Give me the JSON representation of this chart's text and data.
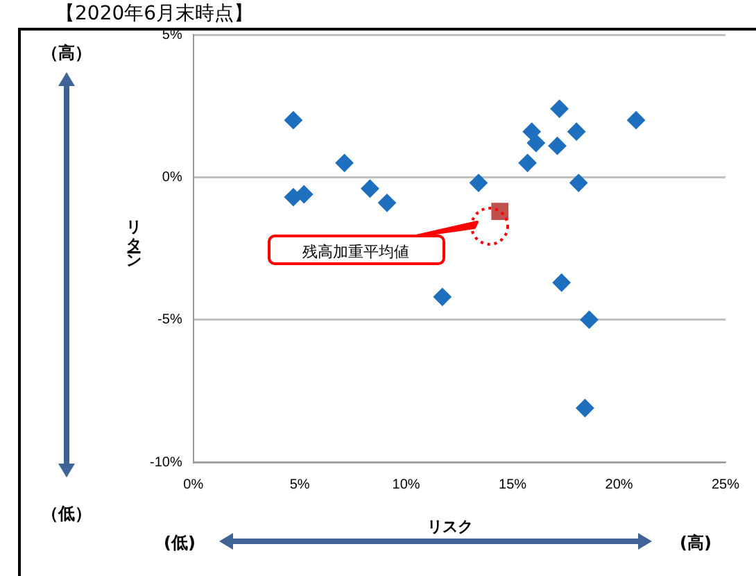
{
  "chart_data": {
    "type": "scatter",
    "title": "【2020年6月末時点】",
    "xlabel": "リスク",
    "ylabel": "リターン",
    "xlim": [
      0,
      25
    ],
    "xticks": [
      {
        "value": 0,
        "label": "0%"
      },
      {
        "value": 5,
        "label": "5%"
      },
      {
        "value": 10,
        "label": "10%"
      },
      {
        "value": 15,
        "label": "15%"
      },
      {
        "value": 20,
        "label": "20%"
      },
      {
        "value": 25,
        "label": "25%"
      }
    ],
    "ylim": [
      -10,
      5
    ],
    "yticks": [
      {
        "value": -10,
        "label": "-10%"
      },
      {
        "value": -5,
        "label": "-5%"
      },
      {
        "value": 0,
        "label": "0%"
      },
      {
        "value": 5,
        "label": "5%"
      }
    ],
    "grid": "y",
    "legend": false,
    "marker": "diamond",
    "series": [
      {
        "color": "#1f6fbf",
        "x": [
          4.7,
          4.7,
          5.2,
          7.1,
          8.3,
          9.1,
          11.7,
          13.4,
          17.2,
          15.9,
          16.1,
          17.1,
          18.0,
          20.8,
          15.7,
          18.1,
          17.3,
          18.6,
          18.4
        ],
        "values": [
          2.0,
          -0.7,
          -0.6,
          0.5,
          -0.4,
          -0.9,
          -4.2,
          -0.2,
          2.4,
          1.6,
          1.2,
          1.1,
          1.6,
          2.0,
          0.5,
          -0.2,
          -3.7,
          -5.0,
          -8.1
        ]
      },
      {
        "color": "#c0504d",
        "marker": "square",
        "x": [
          14.4
        ],
        "values": [
          -1.2
        ]
      }
    ],
    "annotations": [
      "（高）",
      "（低）",
      "(低)",
      "(高)",
      "残高加重平均値"
    ]
  }
}
